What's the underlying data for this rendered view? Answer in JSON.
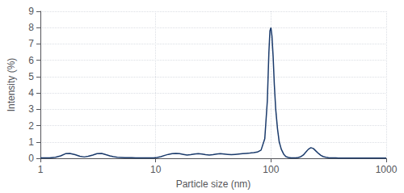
{
  "chart_data": {
    "type": "line",
    "xlabel": "Particle size (nm)",
    "ylabel": "Intensity (%)",
    "color": "#1a3a6b",
    "log": "x",
    "grid": true,
    "xlim": [
      1,
      1000
    ],
    "xticks": [
      1,
      10,
      100,
      1000
    ],
    "ylim": [
      0,
      9
    ],
    "yticks": [
      0,
      1,
      2,
      3,
      4,
      5,
      6,
      7,
      8,
      9
    ],
    "x": [
      1.0,
      1.1,
      1.2,
      1.35,
      1.5,
      1.65,
      1.8,
      2.0,
      2.2,
      2.4,
      2.6,
      2.85,
      3.1,
      3.4,
      3.7,
      4.0,
      4.3,
      4.65,
      5.0,
      5.4,
      5.8,
      6.2,
      6.7,
      7.2,
      7.8,
      8.4,
      9.0,
      9.6,
      10.3,
      11.1,
      12.0,
      12.9,
      13.9,
      15.0,
      16.1,
      17.4,
      18.7,
      20.1,
      21.7,
      23.4,
      25.2,
      27.1,
      29.2,
      31.4,
      33.8,
      36.4,
      39.2,
      42.2,
      45.4,
      48.9,
      52.7,
      56.7,
      61.0,
      65.7,
      70.8,
      76.2,
      82.1,
      88.4,
      93.0,
      96.0,
      98.0,
      100.0,
      102.0,
      104.5,
      107.0,
      110.0,
      114.0,
      118.0,
      123.0,
      129.0,
      135.0,
      142.0,
      149.0,
      157.0,
      165.0,
      173.0,
      182.0,
      191.0,
      201.0,
      211.0,
      222.0,
      233.0,
      245.0,
      258.0,
      271.0,
      285.0,
      300.0,
      315.0,
      331.0,
      348.0,
      366.0,
      385.0,
      405.0,
      426.0,
      448.0,
      471.0,
      495.0,
      521.0,
      548.0,
      576.0,
      606.0,
      638.0,
      671.0,
      706.0,
      743.0,
      781.0,
      822.0,
      864.0,
      909.0,
      956.0,
      1000.0
    ],
    "values": [
      0.02,
      0.02,
      0.03,
      0.06,
      0.15,
      0.28,
      0.3,
      0.22,
      0.12,
      0.08,
      0.12,
      0.2,
      0.28,
      0.3,
      0.22,
      0.15,
      0.1,
      0.06,
      0.05,
      0.04,
      0.04,
      0.04,
      0.03,
      0.03,
      0.03,
      0.03,
      0.03,
      0.03,
      0.05,
      0.1,
      0.18,
      0.24,
      0.28,
      0.3,
      0.28,
      0.24,
      0.2,
      0.22,
      0.26,
      0.28,
      0.26,
      0.22,
      0.2,
      0.22,
      0.26,
      0.28,
      0.26,
      0.24,
      0.22,
      0.24,
      0.26,
      0.28,
      0.3,
      0.32,
      0.35,
      0.38,
      0.5,
      1.2,
      3.5,
      6.5,
      7.8,
      8.0,
      7.5,
      6.2,
      4.5,
      3.0,
      1.8,
      1.0,
      0.55,
      0.25,
      0.1,
      0.05,
      0.03,
      0.02,
      0.03,
      0.05,
      0.1,
      0.2,
      0.38,
      0.55,
      0.65,
      0.6,
      0.45,
      0.3,
      0.18,
      0.1,
      0.06,
      0.04,
      0.03,
      0.02,
      0.02,
      0.01,
      0.01,
      0.01,
      0.01,
      0.01,
      0.01,
      0.01,
      0.01,
      0.01,
      0.01,
      0.01,
      0.01,
      0.01,
      0.01,
      0.01,
      0.01,
      0.01,
      0.01,
      0.01,
      0.01
    ]
  }
}
